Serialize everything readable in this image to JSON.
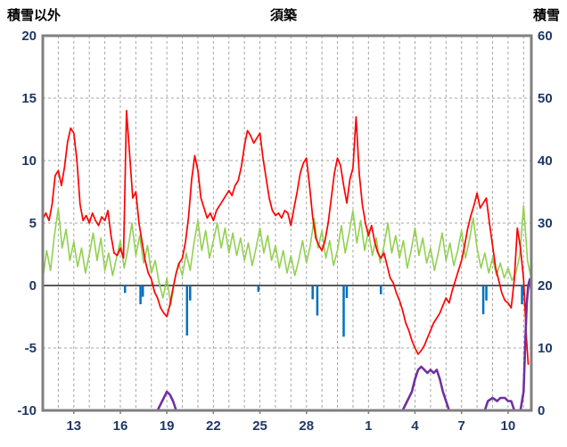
{
  "header": {
    "left_axis_title": "積雪以外",
    "chart_title": "須築",
    "right_axis_title": "積雪"
  },
  "chart_data": {
    "type": "line",
    "title": "須築",
    "left_axis": {
      "label": "積雪以外",
      "min": -10,
      "max": 20,
      "tick_step": 5,
      "ticks": [
        20,
        15,
        10,
        5,
        0,
        -5,
        -10
      ]
    },
    "right_axis": {
      "label": "積雪",
      "min": 0,
      "max": 60,
      "tick_step": 10,
      "ticks": [
        60,
        50,
        40,
        30,
        20,
        10,
        0
      ]
    },
    "x_axis": {
      "min": 0,
      "max": 31.5,
      "gridline_step": 1,
      "tick_labels": [
        {
          "day": 2,
          "label": "13"
        },
        {
          "day": 5,
          "label": "16"
        },
        {
          "day": 8,
          "label": "19"
        },
        {
          "day": 11,
          "label": "22"
        },
        {
          "day": 14,
          "label": "25"
        },
        {
          "day": 17,
          "label": "28"
        },
        {
          "day": 21,
          "label": "1"
        },
        {
          "day": 24,
          "label": "4"
        },
        {
          "day": 27,
          "label": "7"
        },
        {
          "day": 30,
          "label": "10"
        }
      ]
    },
    "colors": {
      "frame": "#808080",
      "grid": "#a6a6a6",
      "zero_line": "#595959",
      "axis_text": "#1f3864",
      "temperature": "#ff0000",
      "wind": "#92d050",
      "precipitation": "#0070c0",
      "snow_depth": "#7030a0"
    },
    "series": [
      {
        "name": "wind",
        "color": "#92d050",
        "axis": "left",
        "kind": "line",
        "width": 1.6,
        "x_start": 0,
        "x_step": 0.25,
        "values": [
          0.5,
          2.8,
          1.2,
          4.0,
          6.2,
          3.0,
          4.5,
          2.0,
          3.5,
          1.5,
          3.0,
          1.0,
          2.5,
          4.2,
          2.0,
          3.8,
          1.2,
          2.6,
          0.8,
          2.2,
          3.6,
          1.4,
          3.0,
          5.0,
          2.4,
          4.0,
          1.8,
          3.2,
          1.0,
          2.0,
          0.2,
          -1.0,
          0.6,
          -1.6,
          0.4,
          1.8,
          0.8,
          2.6,
          1.2,
          3.4,
          5.2,
          2.8,
          4.4,
          2.2,
          3.6,
          5.0,
          3.0,
          4.6,
          2.6,
          4.2,
          2.4,
          3.8,
          2.0,
          3.4,
          1.6,
          3.0,
          4.6,
          2.6,
          4.0,
          2.0,
          3.2,
          1.4,
          2.8,
          1.0,
          2.4,
          0.8,
          2.0,
          3.6,
          1.8,
          3.2,
          5.4,
          3.0,
          4.4,
          2.2,
          3.6,
          1.6,
          2.8,
          4.8,
          2.6,
          4.2,
          6.0,
          3.4,
          5.2,
          2.8,
          4.4,
          2.4,
          3.8,
          1.8,
          3.2,
          5.0,
          2.6,
          4.0,
          2.2,
          3.6,
          1.4,
          2.8,
          4.6,
          2.4,
          3.8,
          1.8,
          3.0,
          1.2,
          2.6,
          4.2,
          2.0,
          3.4,
          1.6,
          2.8,
          4.4,
          2.2,
          3.6,
          5.4,
          3.0,
          1.4,
          2.6,
          1.0,
          2.2,
          0.8,
          1.8,
          0.6,
          1.4,
          0.4,
          1.0,
          2.4,
          6.4,
          2.0,
          0.5
        ]
      },
      {
        "name": "precipitation",
        "color": "#0070c0",
        "axis": "left",
        "kind": "bars-down",
        "width": 2.5,
        "points": [
          [
            5.3,
            -0.6
          ],
          [
            6.3,
            -1.5
          ],
          [
            6.45,
            -0.9
          ],
          [
            9.3,
            -4.0
          ],
          [
            9.5,
            -1.2
          ],
          [
            13.9,
            -0.5
          ],
          [
            17.4,
            -1.1
          ],
          [
            17.7,
            -2.4
          ],
          [
            19.4,
            -4.1
          ],
          [
            19.6,
            -1.0
          ],
          [
            21.8,
            -0.7
          ],
          [
            28.4,
            -2.3
          ],
          [
            28.6,
            -1.2
          ],
          [
            30.9,
            -1.5
          ],
          [
            31.0,
            -0.8
          ]
        ]
      },
      {
        "name": "temperature",
        "color": "#ff0000",
        "axis": "left",
        "kind": "line",
        "width": 1.7,
        "points": [
          [
            0,
            5.3
          ],
          [
            0.2,
            5.8
          ],
          [
            0.4,
            5.2
          ],
          [
            0.6,
            6.5
          ],
          [
            0.8,
            8.8
          ],
          [
            1,
            9.2
          ],
          [
            1.2,
            8
          ],
          [
            1.4,
            9.5
          ],
          [
            1.6,
            11.5
          ],
          [
            1.8,
            12.6
          ],
          [
            2,
            12.2
          ],
          [
            2.2,
            10
          ],
          [
            2.4,
            6.5
          ],
          [
            2.6,
            5.2
          ],
          [
            2.8,
            5.6
          ],
          [
            3,
            5
          ],
          [
            3.2,
            5.8
          ],
          [
            3.4,
            5.2
          ],
          [
            3.6,
            4.8
          ],
          [
            3.8,
            5.5
          ],
          [
            4,
            5.2
          ],
          [
            4.2,
            6
          ],
          [
            4.4,
            4
          ],
          [
            4.6,
            2.6
          ],
          [
            4.8,
            2.4
          ],
          [
            5,
            3
          ],
          [
            5.2,
            2.2
          ],
          [
            5.4,
            14
          ],
          [
            5.6,
            10.5
          ],
          [
            5.8,
            7
          ],
          [
            6,
            7.5
          ],
          [
            6.2,
            5
          ],
          [
            6.4,
            3.5
          ],
          [
            6.6,
            2
          ],
          [
            6.8,
            1
          ],
          [
            7,
            0.5
          ],
          [
            7.2,
            -0.5
          ],
          [
            7.4,
            -1
          ],
          [
            7.6,
            -1.8
          ],
          [
            7.8,
            -2.2
          ],
          [
            8,
            -2.5
          ],
          [
            8.2,
            -1.5
          ],
          [
            8.4,
            -0.2
          ],
          [
            8.6,
            1
          ],
          [
            8.8,
            1.8
          ],
          [
            9,
            2.2
          ],
          [
            9.2,
            3.5
          ],
          [
            9.4,
            5.5
          ],
          [
            9.6,
            8.5
          ],
          [
            9.8,
            10.4
          ],
          [
            10,
            9.2
          ],
          [
            10.2,
            7
          ],
          [
            10.4,
            6.2
          ],
          [
            10.6,
            5.4
          ],
          [
            10.8,
            5.8
          ],
          [
            11,
            5.2
          ],
          [
            11.2,
            6
          ],
          [
            11.4,
            6.4
          ],
          [
            11.6,
            6.8
          ],
          [
            11.8,
            7.2
          ],
          [
            12,
            7.6
          ],
          [
            12.2,
            7.2
          ],
          [
            12.4,
            8
          ],
          [
            12.6,
            8.4
          ],
          [
            12.8,
            9.5
          ],
          [
            13,
            11.2
          ],
          [
            13.2,
            12.4
          ],
          [
            13.4,
            12
          ],
          [
            13.6,
            11.4
          ],
          [
            13.8,
            11.8
          ],
          [
            14,
            12.2
          ],
          [
            14.2,
            10.2
          ],
          [
            14.4,
            8.6
          ],
          [
            14.6,
            7
          ],
          [
            14.8,
            6
          ],
          [
            15,
            5.6
          ],
          [
            15.2,
            5.8
          ],
          [
            15.4,
            5.4
          ],
          [
            15.6,
            6
          ],
          [
            15.8,
            5.8
          ],
          [
            16,
            4.8
          ],
          [
            16.2,
            6.2
          ],
          [
            16.4,
            7.5
          ],
          [
            16.6,
            9
          ],
          [
            16.8,
            9.8
          ],
          [
            17,
            10.2
          ],
          [
            17.2,
            8
          ],
          [
            17.4,
            5.5
          ],
          [
            17.6,
            3.8
          ],
          [
            17.8,
            3.2
          ],
          [
            18,
            2.8
          ],
          [
            18.2,
            3.6
          ],
          [
            18.4,
            5
          ],
          [
            18.6,
            7
          ],
          [
            18.8,
            9
          ],
          [
            19,
            10.2
          ],
          [
            19.2,
            9.6
          ],
          [
            19.4,
            8
          ],
          [
            19.6,
            6.6
          ],
          [
            19.8,
            8.5
          ],
          [
            20,
            9.4
          ],
          [
            20.2,
            13.5
          ],
          [
            20.4,
            9
          ],
          [
            20.6,
            6.5
          ],
          [
            20.8,
            5
          ],
          [
            21,
            4
          ],
          [
            21.2,
            4.8
          ],
          [
            21.4,
            3.5
          ],
          [
            21.6,
            2.6
          ],
          [
            21.8,
            2.2
          ],
          [
            22,
            2.6
          ],
          [
            22.2,
            1.6
          ],
          [
            22.4,
            0.6
          ],
          [
            22.6,
            0.2
          ],
          [
            22.8,
            -0.6
          ],
          [
            23,
            -1.2
          ],
          [
            23.2,
            -2
          ],
          [
            23.4,
            -3
          ],
          [
            23.6,
            -3.6
          ],
          [
            23.8,
            -4.4
          ],
          [
            24,
            -5
          ],
          [
            24.2,
            -5.5
          ],
          [
            24.4,
            -5.2
          ],
          [
            24.6,
            -4.8
          ],
          [
            24.8,
            -4.2
          ],
          [
            25,
            -3.6
          ],
          [
            25.2,
            -3
          ],
          [
            25.4,
            -2.6
          ],
          [
            25.6,
            -2.2
          ],
          [
            25.8,
            -1.6
          ],
          [
            26,
            -1
          ],
          [
            26.2,
            -1.4
          ],
          [
            26.4,
            -0.4
          ],
          [
            26.6,
            0.4
          ],
          [
            26.8,
            1.2
          ],
          [
            27,
            2
          ],
          [
            27.2,
            3.2
          ],
          [
            27.4,
            4.6
          ],
          [
            27.6,
            5.6
          ],
          [
            27.8,
            6.4
          ],
          [
            28,
            7.4
          ],
          [
            28.2,
            6.2
          ],
          [
            28.4,
            6.6
          ],
          [
            28.6,
            7
          ],
          [
            28.8,
            5
          ],
          [
            29,
            3.2
          ],
          [
            29.2,
            1.4
          ],
          [
            29.4,
            0.4
          ],
          [
            29.6,
            -0.6
          ],
          [
            29.8,
            -1.2
          ],
          [
            30,
            -1.4
          ],
          [
            30.2,
            -1.8
          ],
          [
            30.4,
            0.5
          ],
          [
            30.6,
            4.6
          ],
          [
            30.8,
            3
          ],
          [
            31,
            0.5
          ],
          [
            31.1,
            -2
          ],
          [
            31.2,
            -4.5
          ],
          [
            31.3,
            -6.3
          ]
        ]
      },
      {
        "name": "snow-depth",
        "color": "#7030a0",
        "axis": "right",
        "kind": "line",
        "width": 2.6,
        "points": [
          [
            0,
            0
          ],
          [
            7.4,
            0
          ],
          [
            7.6,
            1
          ],
          [
            7.8,
            2
          ],
          [
            8,
            3
          ],
          [
            8.2,
            2.5
          ],
          [
            8.4,
            1.5
          ],
          [
            8.6,
            0
          ],
          [
            23.2,
            0
          ],
          [
            23.5,
            1.5
          ],
          [
            23.8,
            3
          ],
          [
            24,
            5
          ],
          [
            24.2,
            6.5
          ],
          [
            24.4,
            7
          ],
          [
            24.6,
            6.5
          ],
          [
            24.8,
            6
          ],
          [
            25,
            6.5
          ],
          [
            25.2,
            6
          ],
          [
            25.4,
            6.5
          ],
          [
            25.6,
            5
          ],
          [
            25.8,
            3
          ],
          [
            26,
            1.5
          ],
          [
            26.2,
            0
          ],
          [
            28.5,
            0
          ],
          [
            28.7,
            1.5
          ],
          [
            29,
            2
          ],
          [
            29.3,
            1.5
          ],
          [
            29.5,
            2
          ],
          [
            29.8,
            2
          ],
          [
            30,
            1.5
          ],
          [
            30.2,
            1.5
          ],
          [
            30.4,
            0
          ],
          [
            30.8,
            0
          ],
          [
            31,
            3
          ],
          [
            31.1,
            10
          ],
          [
            31.2,
            17
          ],
          [
            31.3,
            20
          ],
          [
            31.4,
            21
          ],
          [
            31.5,
            19
          ]
        ]
      }
    ]
  }
}
